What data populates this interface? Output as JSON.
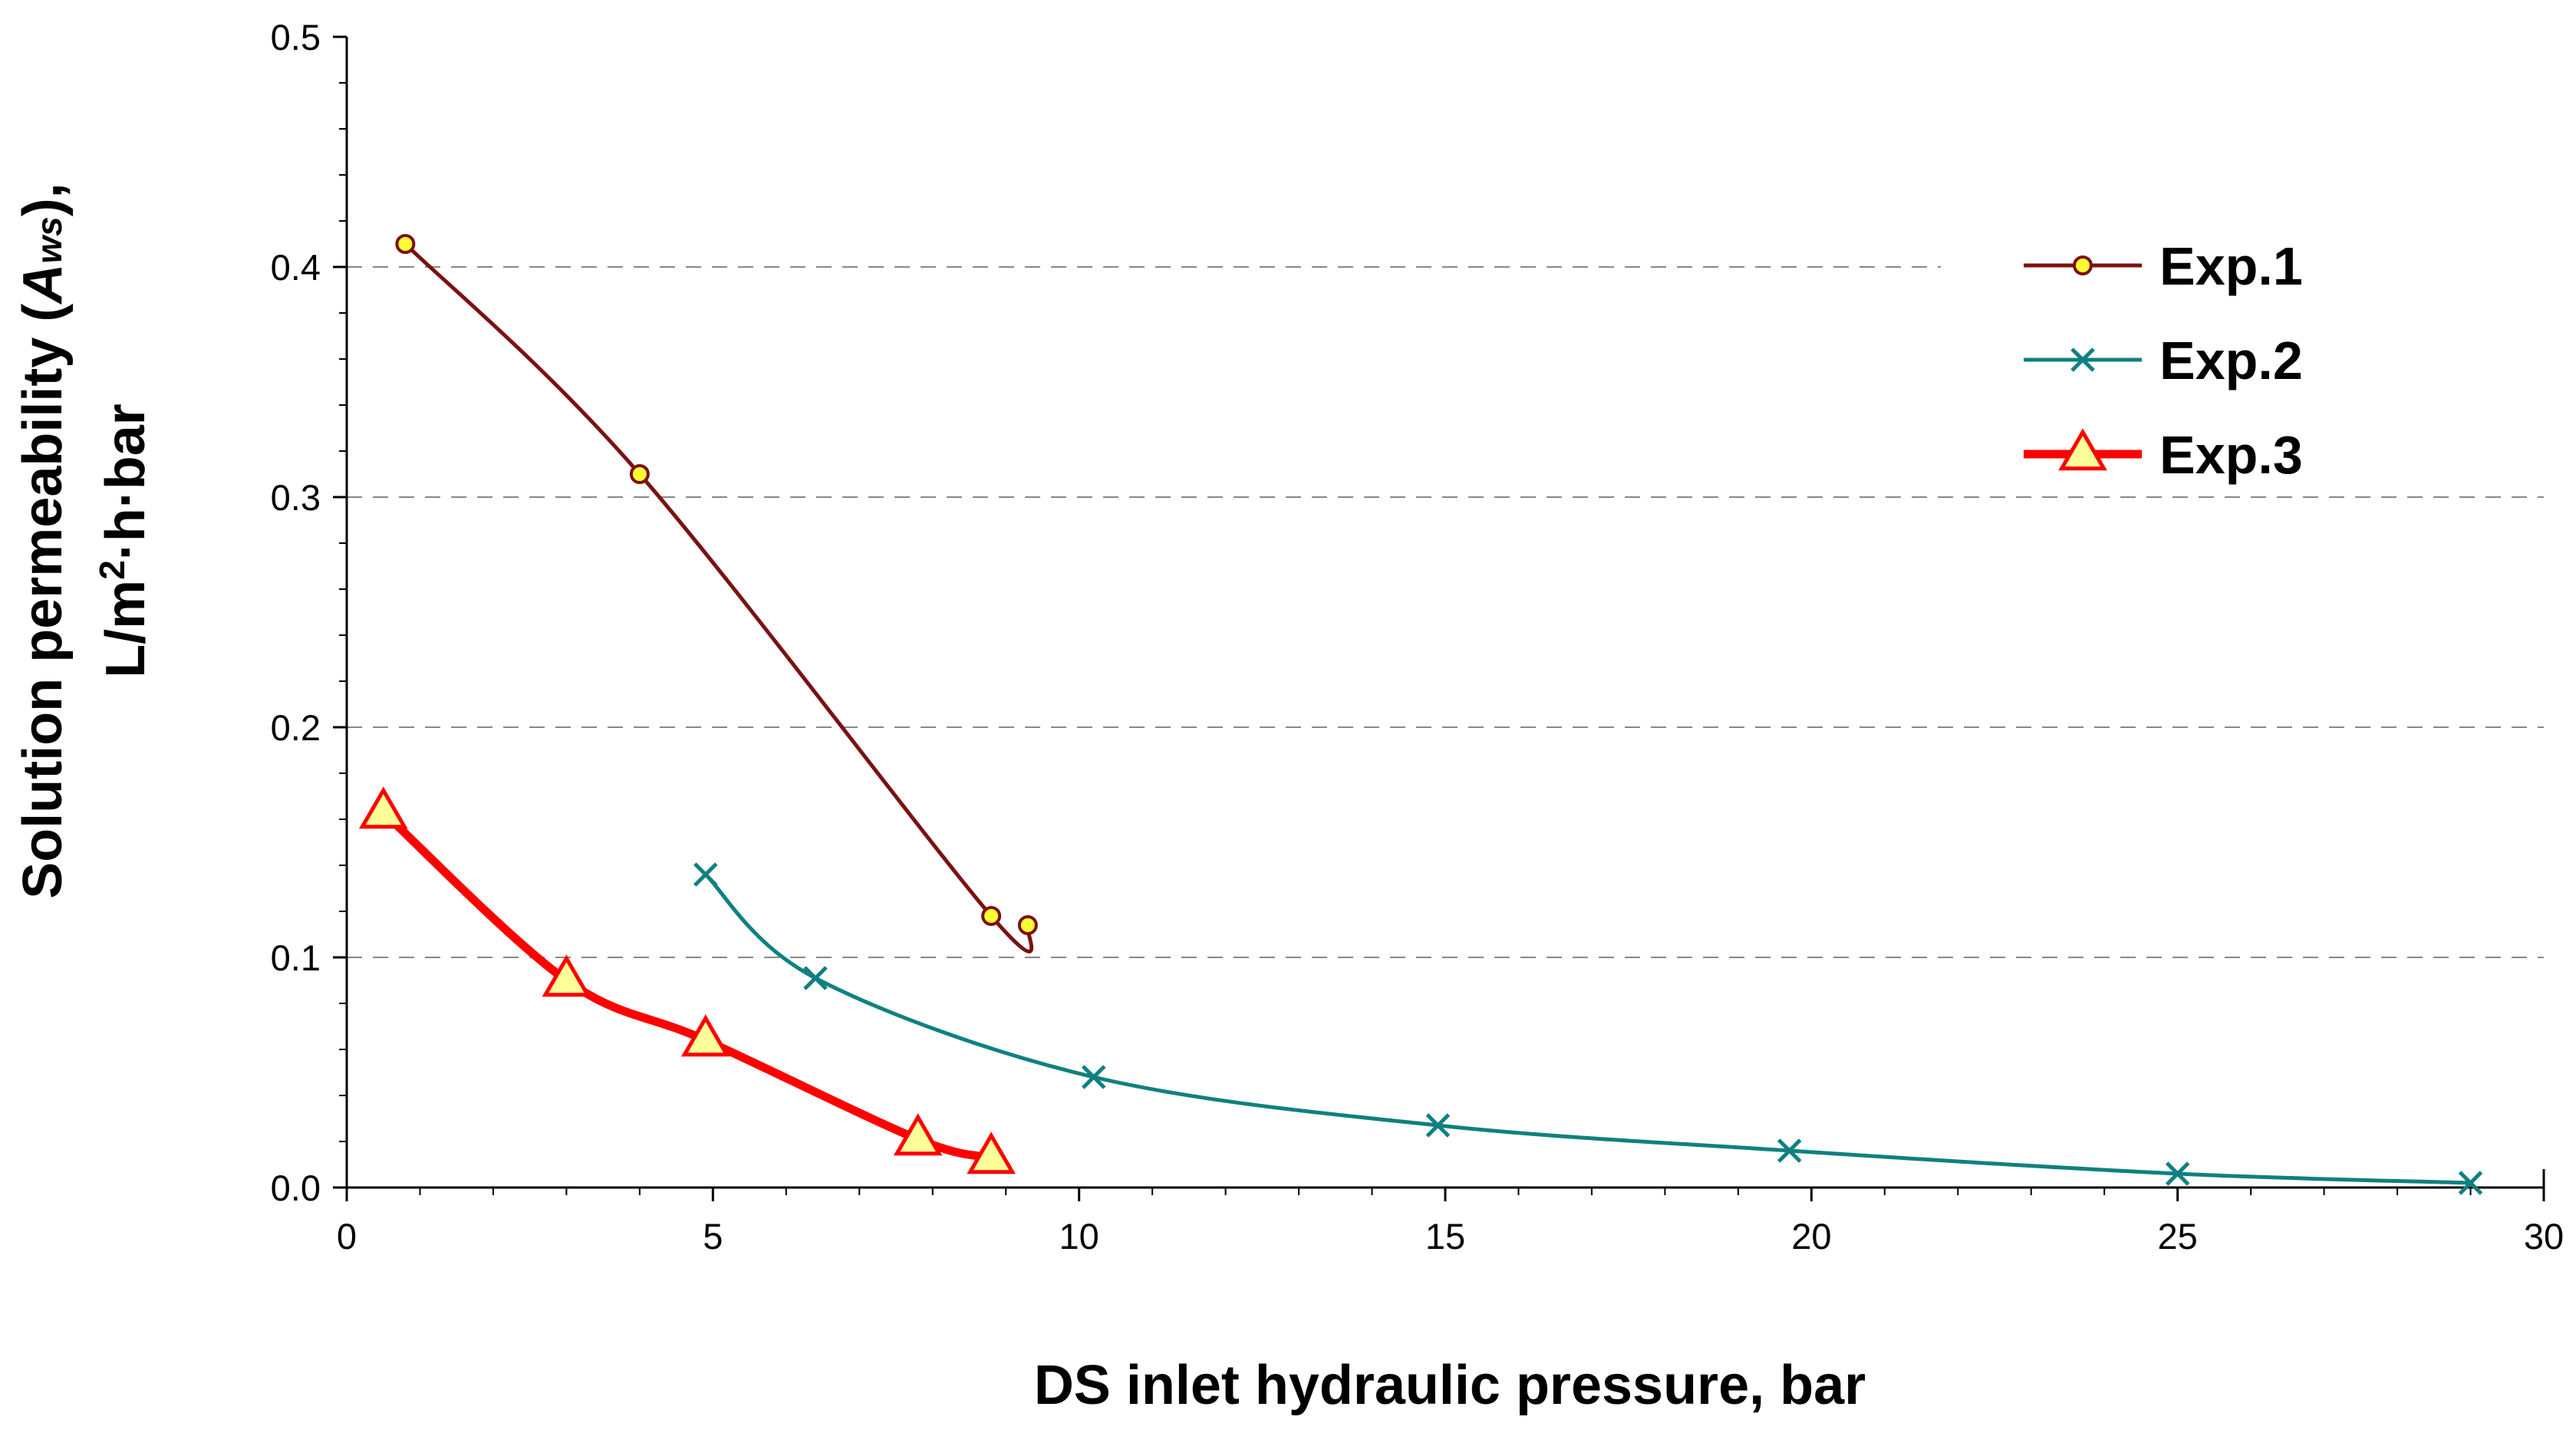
{
  "chart_data": {
    "type": "line",
    "title": "",
    "xlabel": "DS inlet hydraulic pressure, bar",
    "ylabel": {
      "line1_prefix": "Solution permeability (",
      "line1_symbol": "A",
      "line1_subscript": "ws",
      "line1_suffix": "),",
      "line2_prefix": "L/m",
      "line2_superscript": "2",
      "line2_suffix": "·h·bar"
    },
    "xlim": [
      0,
      30
    ],
    "ylim": [
      0,
      0.5
    ],
    "xticks": [
      0,
      5,
      10,
      15,
      20,
      25,
      30
    ],
    "xtick_labels": [
      "0",
      "5",
      "10",
      "15",
      "20",
      "25",
      "30"
    ],
    "yticks": [
      0,
      0.1,
      0.2,
      0.3,
      0.4,
      0.5
    ],
    "ytick_labels": [
      "0.0",
      "0.1",
      "0.2",
      "0.3",
      "0.4",
      "0.5"
    ],
    "grid": "horizontal dashed",
    "legend_position": "top-right",
    "series": [
      {
        "name": "Exp.1",
        "color": "#7B1111",
        "marker": "circle",
        "marker_fill": "#FFFF33",
        "x": [
          0.8,
          4.0,
          8.8,
          9.3
        ],
        "y": [
          0.41,
          0.31,
          0.118,
          0.114
        ]
      },
      {
        "name": "Exp.2",
        "color": "#0F8080",
        "marker": "x",
        "x": [
          4.9,
          6.4,
          10.2,
          14.9,
          19.7,
          25.0,
          29.0
        ],
        "y": [
          0.136,
          0.091,
          0.048,
          0.027,
          0.016,
          0.006,
          0.002
        ]
      },
      {
        "name": "Exp.3",
        "color": "#FF0000",
        "marker": "triangle",
        "marker_fill": "#FFFF99",
        "x": [
          0.5,
          3.0,
          4.9,
          7.8,
          8.8
        ],
        "y": [
          0.163,
          0.09,
          0.064,
          0.021,
          0.013
        ]
      }
    ]
  }
}
